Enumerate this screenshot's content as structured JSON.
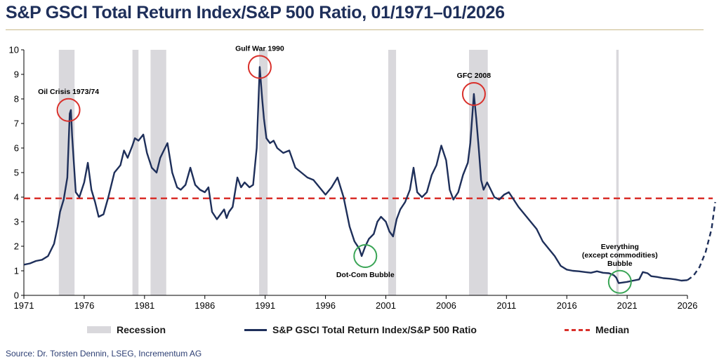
{
  "title": "S&P GSCI Total Return Index/S&P 500 Ratio, 01/1971–01/2026",
  "source": "Source: Dr. Torsten Dennin, LSEG, Incrementum AG",
  "legend": {
    "recession": "Recession",
    "ratio": "S&P GSCI Total Return Index/S&P 500 Ratio",
    "median": "Median"
  },
  "colors": {
    "series": "#1e2f5a",
    "median": "#d9302b",
    "recession": "#d9d8dc",
    "highlight_red": "#d9302b",
    "highlight_green": "#3aa556"
  },
  "chart_data": {
    "type": "line",
    "xlim": [
      1971,
      2028.5
    ],
    "ylim": [
      0,
      10
    ],
    "x_ticks": [
      1971,
      1976,
      1981,
      1986,
      1991,
      1996,
      2001,
      2006,
      2011,
      2016,
      2021,
      2026
    ],
    "y_ticks": [
      0,
      1,
      2,
      3,
      4,
      5,
      6,
      7,
      8,
      9,
      10
    ],
    "median": 3.95,
    "recessions": [
      [
        1973.9,
        1975.2
      ],
      [
        1980.0,
        1980.5
      ],
      [
        1981.5,
        1982.8
      ],
      [
        1990.5,
        1991.2
      ],
      [
        2001.2,
        2001.85
      ],
      [
        2007.9,
        2009.45
      ],
      [
        2020.1,
        2020.3
      ]
    ],
    "series": [
      {
        "name": "S&P GSCI Total Return Index/S&P 500 Ratio",
        "x": [
          1971.0,
          1971.5,
          1972.0,
          1972.5,
          1973.0,
          1973.5,
          1973.8,
          1974.0,
          1974.3,
          1974.6,
          1974.8,
          1974.9,
          1975.0,
          1975.3,
          1975.6,
          1976.0,
          1976.3,
          1976.6,
          1976.9,
          1977.2,
          1977.6,
          1978.0,
          1978.5,
          1979.0,
          1979.3,
          1979.6,
          1980.0,
          1980.2,
          1980.5,
          1980.9,
          1981.2,
          1981.6,
          1982.0,
          1982.3,
          1982.6,
          1982.9,
          1983.3,
          1983.7,
          1984.0,
          1984.4,
          1984.8,
          1985.2,
          1985.6,
          1986.0,
          1986.3,
          1986.6,
          1987.0,
          1987.3,
          1987.6,
          1987.8,
          1988.0,
          1988.3,
          1988.7,
          1989.0,
          1989.3,
          1989.7,
          1990.0,
          1990.3,
          1990.55,
          1990.75,
          1990.9,
          1991.1,
          1991.4,
          1991.7,
          1992.0,
          1992.5,
          1993.0,
          1993.5,
          1994.0,
          1994.5,
          1995.0,
          1995.5,
          1996.0,
          1996.5,
          1997.0,
          1997.5,
          1998.0,
          1998.4,
          1998.8,
          1999.0,
          1999.3,
          1999.6,
          2000.0,
          2000.3,
          2000.6,
          2001.0,
          2001.3,
          2001.6,
          2001.9,
          2002.2,
          2002.6,
          2003.0,
          2003.3,
          2003.6,
          2004.0,
          2004.4,
          2004.8,
          2005.2,
          2005.6,
          2006.0,
          2006.3,
          2006.6,
          2007.0,
          2007.4,
          2007.8,
          2008.0,
          2008.3,
          2008.5,
          2008.7,
          2008.9,
          2009.1,
          2009.4,
          2009.7,
          2010.0,
          2010.4,
          2010.8,
          2011.2,
          2011.6,
          2012.0,
          2012.5,
          2013.0,
          2013.5,
          2014.0,
          2014.5,
          2015.0,
          2015.5,
          2016.0,
          2016.5,
          2017.0,
          2017.5,
          2018.0,
          2018.5,
          2019.0,
          2019.5,
          2019.9,
          2020.1,
          2020.3,
          2020.6,
          2021.0,
          2021.5,
          2022.0,
          2022.3,
          2022.7,
          2023.0,
          2023.5,
          2024.0,
          2024.5,
          2025.0,
          2025.5,
          2026.0
        ],
        "y": [
          1.25,
          1.3,
          1.4,
          1.45,
          1.6,
          2.1,
          2.8,
          3.4,
          3.9,
          4.8,
          7.4,
          7.55,
          6.5,
          4.2,
          4.0,
          4.6,
          5.4,
          4.3,
          3.8,
          3.2,
          3.3,
          4.0,
          5.0,
          5.3,
          5.9,
          5.6,
          6.1,
          6.4,
          6.3,
          6.55,
          5.8,
          5.2,
          5.0,
          5.6,
          5.9,
          6.2,
          5.0,
          4.4,
          4.3,
          4.5,
          5.2,
          4.5,
          4.3,
          4.2,
          4.4,
          3.4,
          3.1,
          3.3,
          3.5,
          3.15,
          3.4,
          3.6,
          4.8,
          4.4,
          4.6,
          4.4,
          4.5,
          6.0,
          9.3,
          8.0,
          7.2,
          6.4,
          6.2,
          6.3,
          6.0,
          5.8,
          5.9,
          5.2,
          5.0,
          4.8,
          4.7,
          4.4,
          4.1,
          4.4,
          4.8,
          4.0,
          2.8,
          2.2,
          1.9,
          1.6,
          2.0,
          2.3,
          2.5,
          3.0,
          3.2,
          3.0,
          2.6,
          2.4,
          3.1,
          3.5,
          3.8,
          4.3,
          5.2,
          4.2,
          4.0,
          4.2,
          4.9,
          5.3,
          6.1,
          5.5,
          4.3,
          3.9,
          4.2,
          4.9,
          5.4,
          6.2,
          8.2,
          7.2,
          6.0,
          4.7,
          4.3,
          4.6,
          4.3,
          4.0,
          3.9,
          4.1,
          4.2,
          3.9,
          3.6,
          3.3,
          3.0,
          2.7,
          2.2,
          1.9,
          1.6,
          1.2,
          1.05,
          1.0,
          0.98,
          0.95,
          0.92,
          0.98,
          0.92,
          0.9,
          0.82,
          0.72,
          0.5,
          0.52,
          0.55,
          0.6,
          0.65,
          0.95,
          0.9,
          0.78,
          0.75,
          0.7,
          0.68,
          0.65,
          0.6,
          0.62
        ]
      }
    ],
    "projection": {
      "x": [
        2026.0,
        2026.5,
        2027.0,
        2027.5,
        2028.0,
        2028.3
      ],
      "y": [
        0.62,
        0.8,
        1.15,
        1.75,
        2.7,
        3.8
      ]
    },
    "annotations": [
      {
        "label": "Oil Crisis 1973/74",
        "x": 1974.7,
        "y": 7.55,
        "color": "red",
        "label_side": "above"
      },
      {
        "label": "Gulf War 1990",
        "x": 1990.55,
        "y": 9.3,
        "color": "red",
        "label_side": "above"
      },
      {
        "label": "GFC 2008",
        "x": 2008.3,
        "y": 8.2,
        "color": "red",
        "label_side": "above"
      },
      {
        "label": "Dot-Com Bubble",
        "x": 1999.3,
        "y": 1.6,
        "color": "green",
        "label_side": "below"
      },
      {
        "label": "Everything (except commodities) Bubble",
        "x": 2020.4,
        "y": 0.55,
        "color": "green",
        "label_side": "above"
      }
    ]
  }
}
